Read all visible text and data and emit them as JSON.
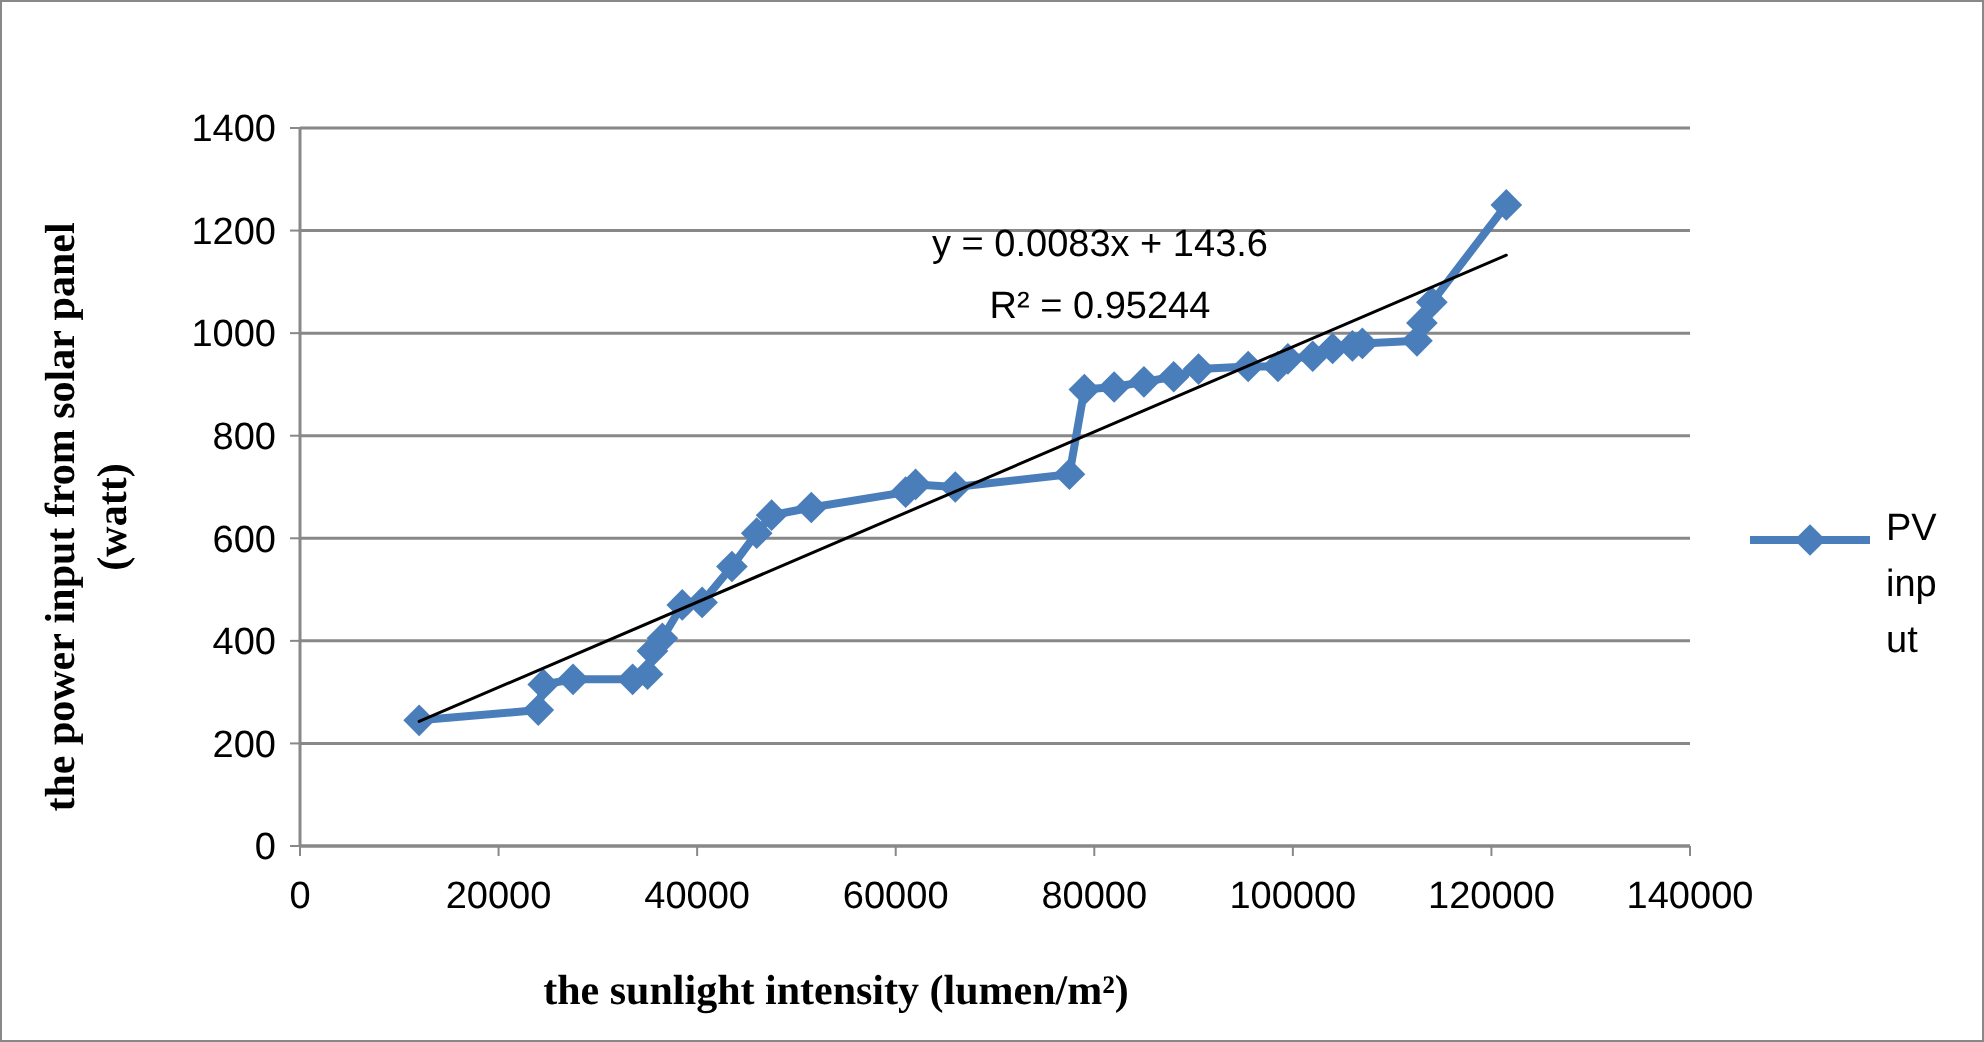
{
  "chart_data": {
    "type": "line",
    "xlabel": "the sunlight intensity (lumen/m²)",
    "ylabel": "the power input from solar panel (watt)",
    "xlim": [
      0,
      140000
    ],
    "xticks": [
      0,
      20000,
      40000,
      60000,
      80000,
      100000,
      120000,
      140000
    ],
    "ylim": [
      0,
      1400
    ],
    "yticks": [
      0,
      200,
      400,
      600,
      800,
      1000,
      1200,
      1400
    ],
    "grid": "y",
    "legend": "right",
    "marker": "diamond",
    "line_style": "solid",
    "annotations": [
      "y = 0.0083x + 143.6",
      "R² = 0.95244"
    ],
    "series": [
      {
        "name": "PV input",
        "color": "#4a7ebb",
        "x": [
          12000,
          24000,
          24500,
          27500,
          33500,
          35000,
          35500,
          36500,
          38500,
          40500,
          43500,
          46000,
          47500,
          51500,
          61000,
          62000,
          66000,
          77500,
          79000,
          82000,
          85000,
          88000,
          90500,
          95500,
          98500,
          99500,
          102000,
          104000,
          106000,
          107000,
          112500,
          113000,
          114000,
          121500
        ],
        "values": [
          245,
          265,
          315,
          325,
          325,
          335,
          380,
          405,
          470,
          475,
          545,
          610,
          645,
          660,
          690,
          705,
          700,
          725,
          890,
          895,
          905,
          915,
          930,
          935,
          935,
          950,
          955,
          970,
          975,
          980,
          985,
          1020,
          1060,
          1250
        ]
      },
      {
        "type": "line",
        "color": "#000000",
        "marker": "none",
        "x": [
          12000,
          121500
        ],
        "values": [
          243,
          1152
        ]
      }
    ]
  }
}
